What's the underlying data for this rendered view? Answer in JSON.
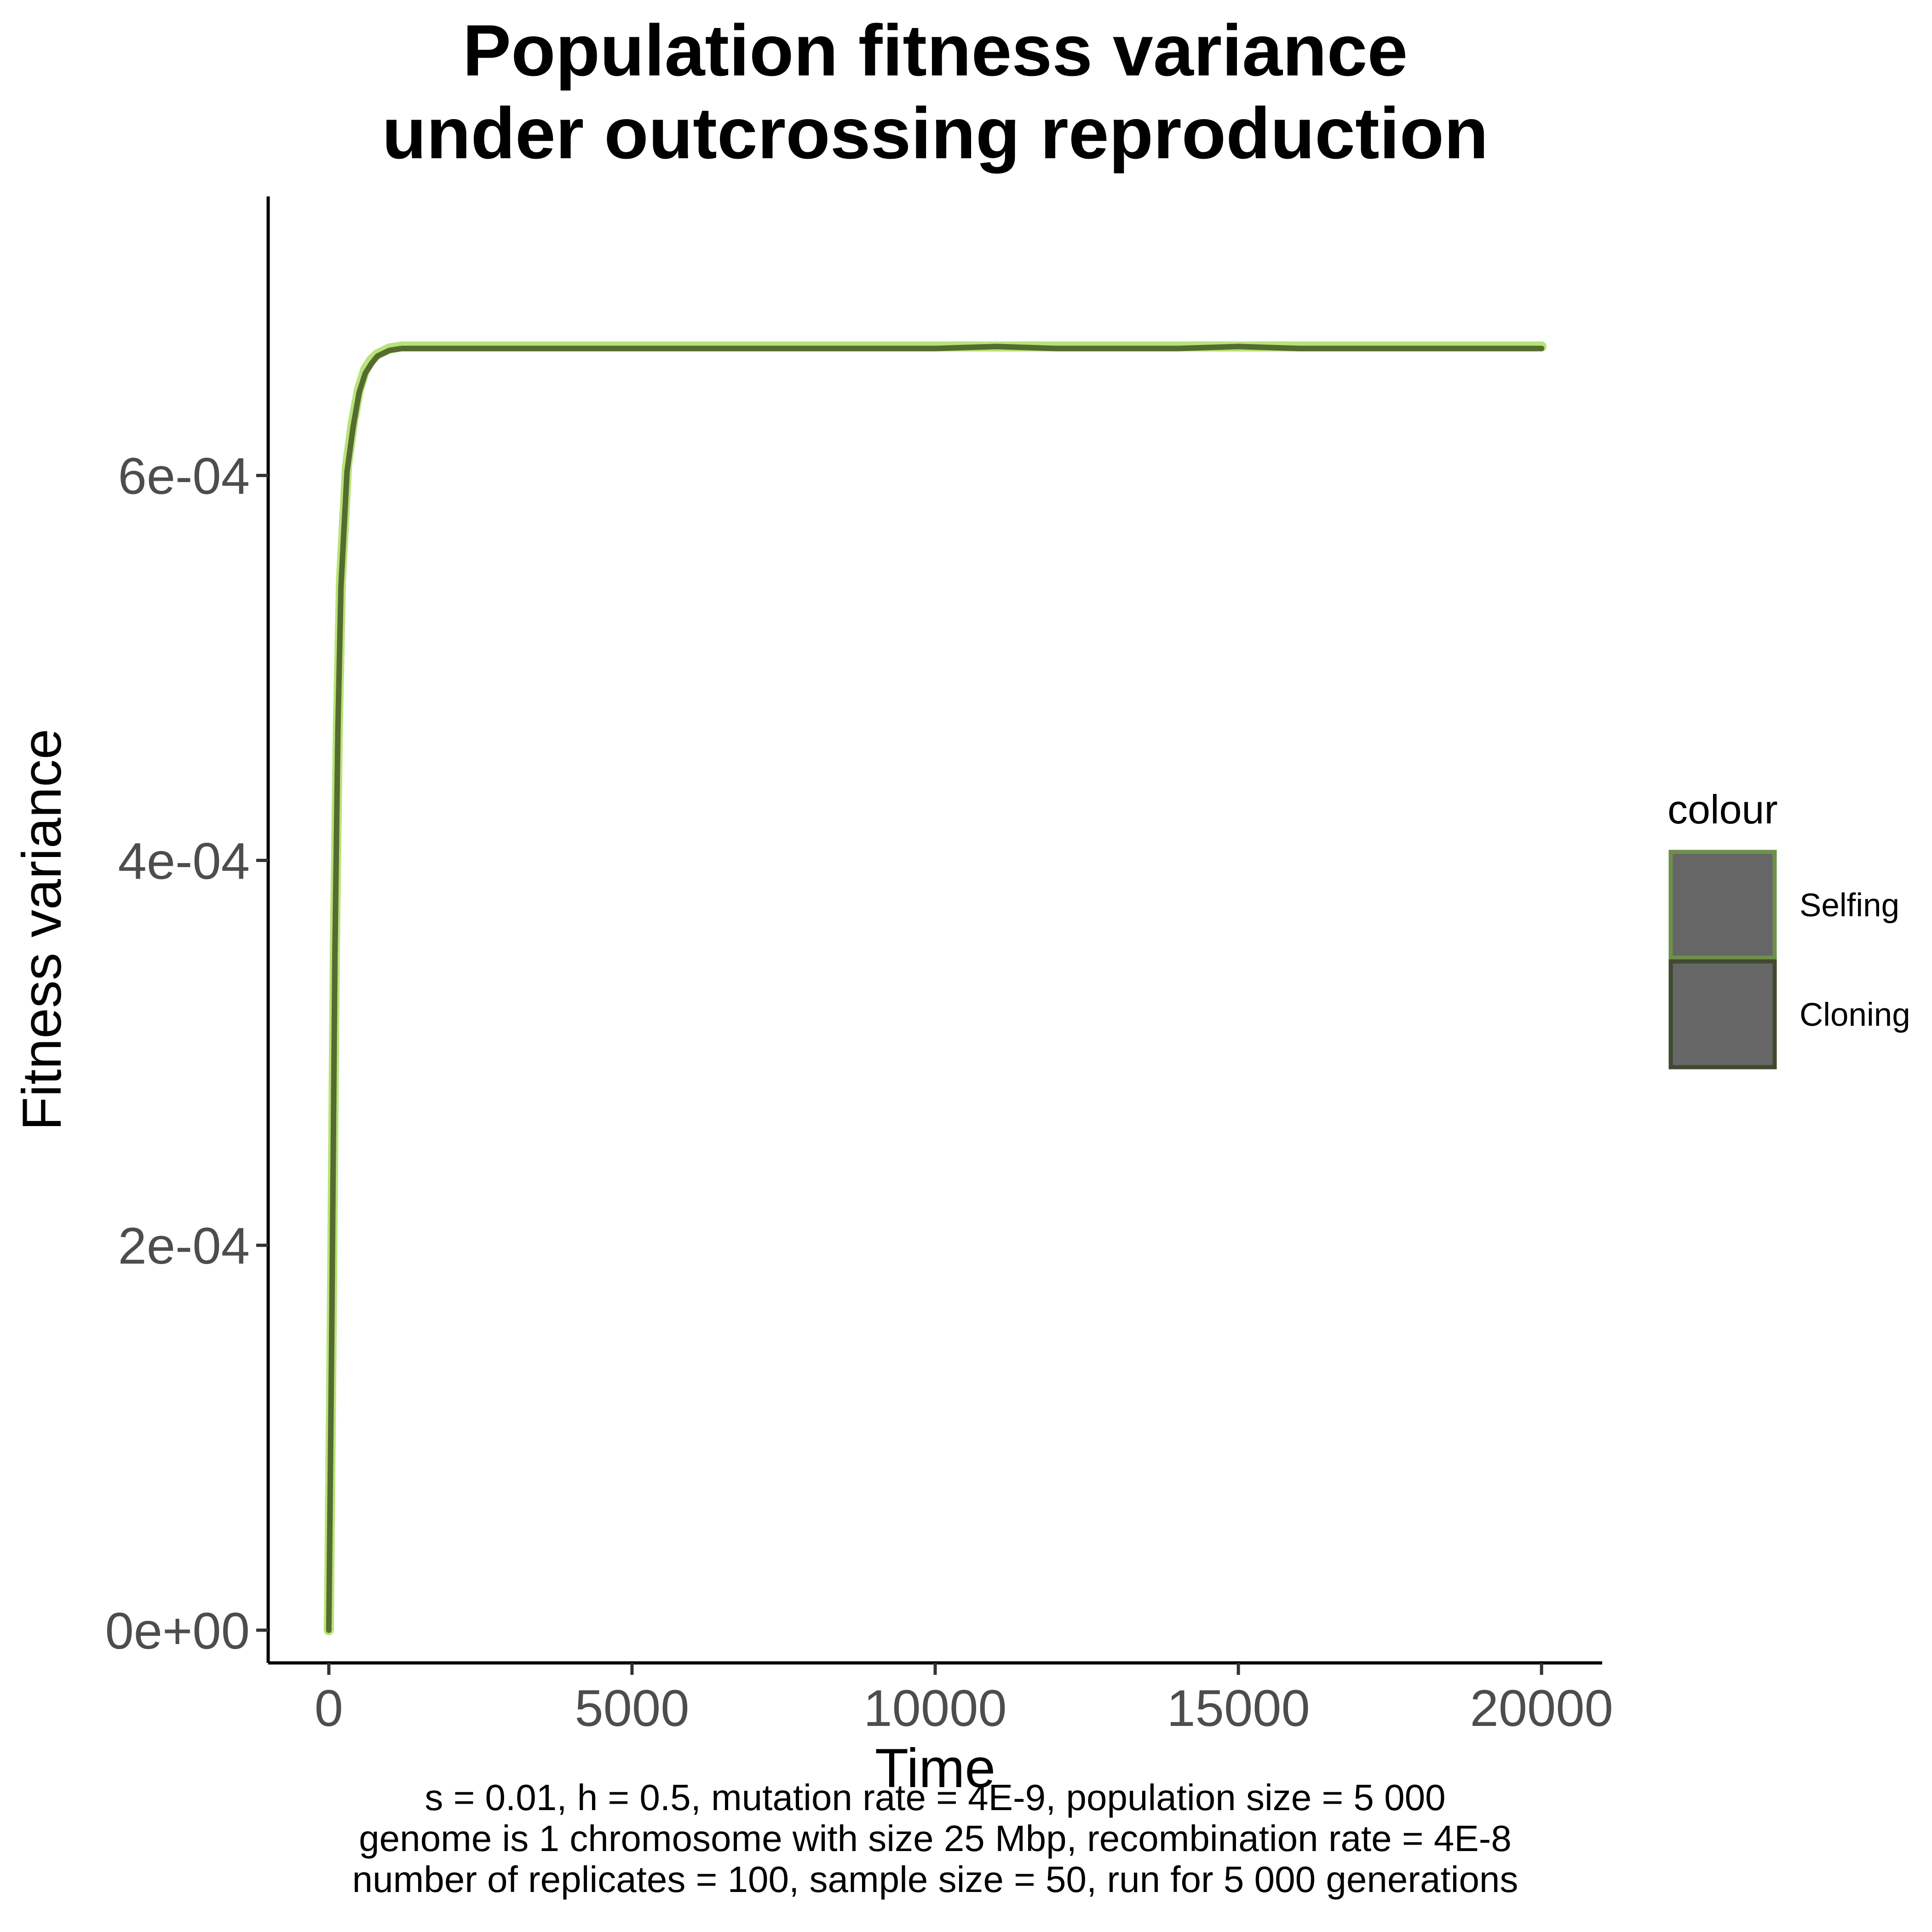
{
  "chart_data": {
    "type": "line",
    "title": [
      "Population fitness variance",
      "under outcrossing reproduction"
    ],
    "xlabel": "Time",
    "ylabel": "Fitness variance",
    "xlim": [
      -1000,
      21000
    ],
    "ylim": [
      -1.7e-05,
      0.000745
    ],
    "x_ticks": [
      0,
      5000,
      10000,
      15000,
      20000
    ],
    "x_tick_labels": [
      "0",
      "5000",
      "10000",
      "15000",
      "20000"
    ],
    "y_ticks": [
      0,
      0.0002,
      0.0004,
      0.0006
    ],
    "y_tick_labels": [
      "0e+00",
      "2e-04",
      "4e-04",
      "6e-04"
    ],
    "grid": false,
    "legend": {
      "title": "colour",
      "position": "right",
      "entries": [
        {
          "label": "Selfing",
          "fill": "#666666",
          "border": "#6f8f4a"
        },
        {
          "label": "Cloning",
          "fill": "#666666",
          "border": "#3f4a30"
        }
      ]
    },
    "series": [
      {
        "name": "Selfing",
        "color": "#b7e37a",
        "x": [
          0,
          50,
          100,
          150,
          200,
          300,
          400,
          500,
          600,
          700,
          800,
          1000,
          1200,
          1500,
          2000,
          3000,
          4000,
          5000,
          6000,
          7000,
          8000,
          9000,
          10000,
          11000,
          12000,
          13000,
          14000,
          15000,
          16000,
          17000,
          18000,
          19000,
          20000
        ],
        "y": [
          0,
          0.000165,
          0.000355,
          0.00047,
          0.000545,
          0.000605,
          0.000628,
          0.000645,
          0.000655,
          0.00066,
          0.000663,
          0.000666,
          0.000667,
          0.000667,
          0.000667,
          0.000667,
          0.000667,
          0.000667,
          0.000667,
          0.000667,
          0.000667,
          0.000667,
          0.000667,
          0.000667,
          0.000667,
          0.000667,
          0.000667,
          0.000667,
          0.000667,
          0.000667,
          0.000667,
          0.000667,
          0.000667
        ]
      },
      {
        "name": "Cloning",
        "color": "#556b2f",
        "x": [
          0,
          50,
          100,
          150,
          200,
          300,
          400,
          500,
          600,
          700,
          800,
          1000,
          1200,
          1500,
          2000,
          3000,
          4000,
          5000,
          6000,
          7000,
          8000,
          9000,
          10000,
          11000,
          12000,
          13000,
          14000,
          15000,
          16000,
          17000,
          18000,
          19000,
          20000
        ],
        "y": [
          0,
          0.00016,
          0.00035,
          0.000468,
          0.000542,
          0.000602,
          0.000625,
          0.000643,
          0.000653,
          0.000658,
          0.000662,
          0.000665,
          0.000666,
          0.000666,
          0.000666,
          0.000666,
          0.000666,
          0.000666,
          0.000666,
          0.000666,
          0.000666,
          0.000666,
          0.000666,
          0.000667,
          0.000666,
          0.000666,
          0.000666,
          0.000667,
          0.000666,
          0.000666,
          0.000666,
          0.000666,
          0.000666
        ]
      }
    ],
    "caption": [
      "s = 0.01, h = 0.5, mutation rate = 4E-9, population size = 5 000",
      "genome is 1 chromosome with size 25 Mbp, recombination rate = 4E-8",
      "number of replicates = 100, sample size = 50, run for 5 000 generations"
    ]
  }
}
